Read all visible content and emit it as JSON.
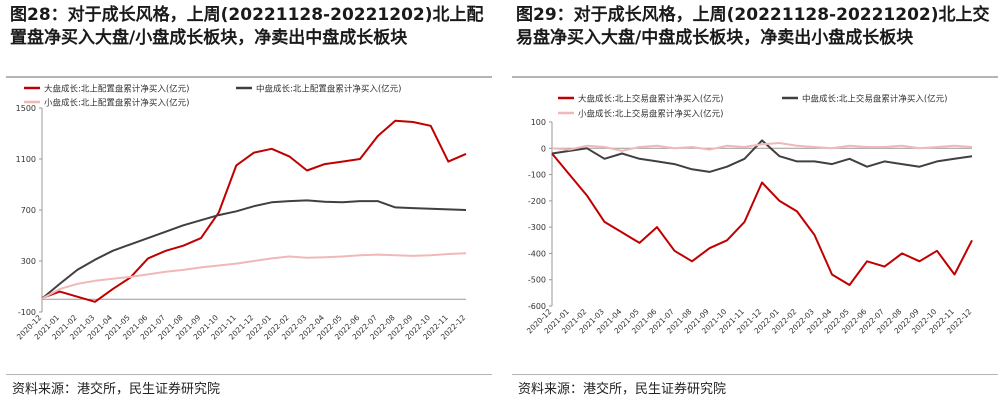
{
  "figures": [
    {
      "title": "图28：对于成长风格，上周(20221128-20221202)北上配置盘净买入大盘/小盘成长板块，净卖出中盘成长板块",
      "source": "资料来源：港交所，民生证券研究院"
    },
    {
      "title": "图29：对于成长风格，上周(20221128-20221202)北上交易盘净买入大盘/中盘成长板块，净卖出小盘成长板块",
      "source": "资料来源：港交所，民生证券研究院"
    }
  ],
  "chart_data": [
    {
      "type": "line",
      "categories": [
        "2020-12",
        "2021-01",
        "2021-02",
        "2021-03",
        "2021-04",
        "2021-05",
        "2021-06",
        "2021-07",
        "2021-08",
        "2021-09",
        "2021-10",
        "2021-11",
        "2021-12",
        "2022-01",
        "2022-02",
        "2022-03",
        "2022-04",
        "2022-05",
        "2022-06",
        "2022-07",
        "2022-08",
        "2022-09",
        "2022-10",
        "2022-11",
        "2022-12"
      ],
      "ylim": [
        -100,
        1500
      ],
      "yticks": [
        -100,
        300,
        700,
        1100,
        1500
      ],
      "ytick_labels": [
        "-100",
        "300",
        "700",
        "1100",
        "1500"
      ],
      "grid": false,
      "legend_position": "top",
      "series": [
        {
          "name": "大盘成长:北上配置盘累计净买入(亿元)",
          "color": "#c00000",
          "width": 2,
          "values": [
            10,
            60,
            20,
            -20,
            80,
            170,
            320,
            380,
            420,
            480,
            680,
            1050,
            1150,
            1180,
            1120,
            1010,
            1060,
            1080,
            1100,
            1280,
            1400,
            1390,
            1360,
            1080,
            1140
          ]
        },
        {
          "name": "中盘成长:北上配置盘累计净买入(亿元)",
          "color": "#404040",
          "width": 2,
          "values": [
            5,
            120,
            230,
            310,
            380,
            430,
            480,
            530,
            580,
            620,
            660,
            690,
            730,
            760,
            770,
            775,
            765,
            760,
            770,
            770,
            720,
            715,
            710,
            705,
            700
          ]
        },
        {
          "name": "小盘成长:北上配置盘累计净买入(亿元)",
          "color": "#f0b8b8",
          "width": 2,
          "values": [
            5,
            80,
            120,
            145,
            160,
            175,
            195,
            215,
            230,
            250,
            265,
            280,
            300,
            320,
            335,
            325,
            330,
            335,
            345,
            350,
            345,
            340,
            345,
            355,
            360
          ]
        }
      ]
    },
    {
      "type": "line",
      "categories": [
        "2020-12",
        "2021-01",
        "2021-02",
        "2021-03",
        "2021-04",
        "2021-05",
        "2021-06",
        "2021-07",
        "2021-08",
        "2021-09",
        "2021-10",
        "2021-11",
        "2021-12",
        "2022-01",
        "2022-02",
        "2022-03",
        "2022-04",
        "2022-05",
        "2022-06",
        "2022-07",
        "2022-08",
        "2022-09",
        "2022-10",
        "2022-11",
        "2022-12"
      ],
      "ylim": [
        -600,
        100
      ],
      "yticks": [
        -600,
        -500,
        -400,
        -300,
        -200,
        -100,
        0,
        100
      ],
      "ytick_labels": [
        "-600",
        "-500",
        "-400",
        "-300",
        "-200",
        "-100",
        "0",
        "100"
      ],
      "grid": false,
      "legend_position": "top",
      "series": [
        {
          "name": "大盘成长:北上交易盘累计净买入(亿元)",
          "color": "#c00000",
          "width": 2,
          "values": [
            -20,
            -100,
            -180,
            -280,
            -320,
            -360,
            -300,
            -390,
            -430,
            -380,
            -350,
            -280,
            -130,
            -200,
            -240,
            -330,
            -480,
            -520,
            -430,
            -450,
            -400,
            -430,
            -390,
            -480,
            -350
          ]
        },
        {
          "name": "中盘成长:北上交易盘累计净买入(亿元)",
          "color": "#404040",
          "width": 2,
          "values": [
            -20,
            -10,
            0,
            -40,
            -20,
            -40,
            -50,
            -60,
            -80,
            -90,
            -70,
            -40,
            30,
            -30,
            -50,
            -50,
            -60,
            -40,
            -70,
            -50,
            -60,
            -70,
            -50,
            -40,
            -30
          ]
        },
        {
          "name": "小盘成长:北上交易盘累计净买入(亿元)",
          "color": "#f0b8b8",
          "width": 2,
          "values": [
            0,
            -5,
            10,
            5,
            -10,
            5,
            10,
            0,
            5,
            -5,
            10,
            5,
            15,
            20,
            10,
            5,
            0,
            10,
            5,
            5,
            10,
            0,
            5,
            10,
            5
          ]
        }
      ]
    }
  ]
}
